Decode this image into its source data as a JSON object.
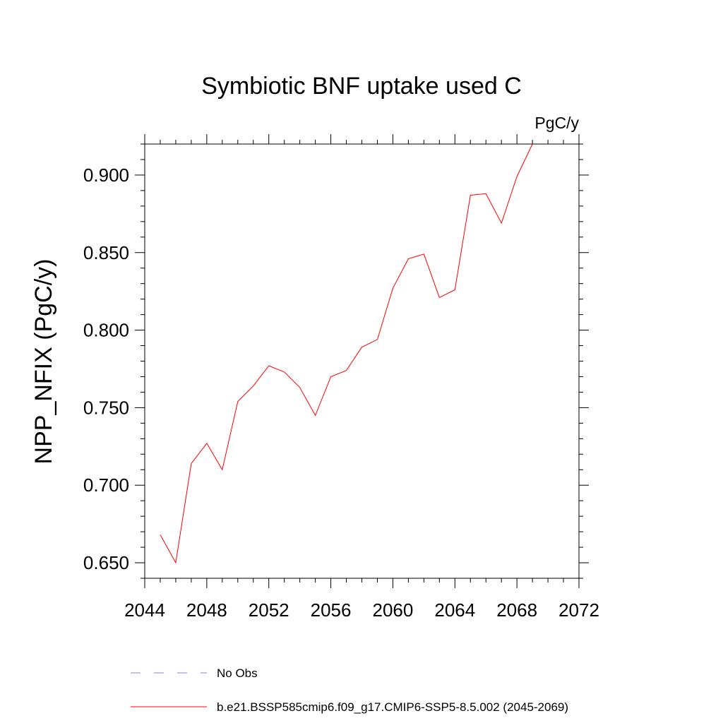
{
  "chart_data": {
    "type": "line",
    "title": "Symbiotic BNF uptake used C",
    "unit_label": "PgC/y",
    "ylabel": "NPP_NFIX  (PgC/y)",
    "xlabel": "",
    "xlim": [
      2044,
      2072
    ],
    "ylim": [
      0.64,
      0.92
    ],
    "x_ticks": [
      2044,
      2048,
      2052,
      2056,
      2060,
      2064,
      2068,
      2072
    ],
    "y_ticks": [
      0.65,
      0.7,
      0.75,
      0.8,
      0.85,
      0.9
    ],
    "x_tick_labels": [
      "2044",
      "2048",
      "2052",
      "2056",
      "2060",
      "2064",
      "2068",
      "2072"
    ],
    "y_tick_labels": [
      "0.650",
      "0.700",
      "0.750",
      "0.800",
      "0.850",
      "0.900"
    ],
    "grid": false,
    "legend_position": "bottom",
    "series": [
      {
        "name": "b.e21.BSSP585cmip6.f09_g17.CMIP6-SSP5-8.5.002 (2045-2069)",
        "color": "#ff0000",
        "style": "solid",
        "x": [
          2045,
          2046,
          2047,
          2048,
          2049,
          2050,
          2051,
          2052,
          2053,
          2054,
          2055,
          2056,
          2057,
          2058,
          2059,
          2060,
          2061,
          2062,
          2063,
          2064,
          2065,
          2066,
          2067,
          2068,
          2069
        ],
        "values": [
          0.668,
          0.65,
          0.714,
          0.727,
          0.71,
          0.754,
          0.764,
          0.777,
          0.773,
          0.763,
          0.745,
          0.77,
          0.774,
          0.789,
          0.794,
          0.827,
          0.846,
          0.849,
          0.821,
          0.826,
          0.887,
          0.888,
          0.869,
          0.899,
          0.92
        ]
      }
    ],
    "legend": [
      {
        "label": "No Obs",
        "color": "#8080ff",
        "style": "dashed"
      },
      {
        "label": "b.e21.BSSP585cmip6.f09_g17.CMIP6-SSP5-8.5.002 (2045-2069)",
        "color": "#ff0000",
        "style": "solid"
      }
    ]
  }
}
